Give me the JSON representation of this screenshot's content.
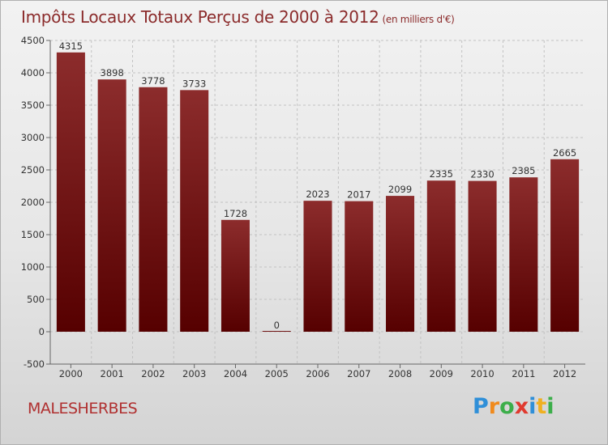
{
  "title": "Impôts Locaux Totaux Perçus de 2000 à 2012",
  "subtitle": "(en milliers d'€)",
  "city": "MALESHERBES",
  "logo": {
    "text": "Proxiti",
    "letters": [
      {
        "ch": "P",
        "color": "#2f8fd8"
      },
      {
        "ch": "r",
        "color": "#f08a1c"
      },
      {
        "ch": "o",
        "color": "#3cae4a"
      },
      {
        "ch": "x",
        "color": "#e03a2f"
      },
      {
        "ch": "i",
        "color": "#2f8fd8"
      },
      {
        "ch": "t",
        "color": "#f0b020"
      },
      {
        "ch": "i",
        "color": "#3cae4a"
      }
    ]
  },
  "chart_data": {
    "type": "bar",
    "title": "Impôts Locaux Totaux Perçus de 2000 à 2012",
    "subtitle": "(en milliers d'€)",
    "xlabel": "",
    "ylabel": "",
    "categories": [
      "2000",
      "2001",
      "2002",
      "2003",
      "2004",
      "2005",
      "2006",
      "2007",
      "2008",
      "2009",
      "2010",
      "2011",
      "2012"
    ],
    "values": [
      4315,
      3898,
      3778,
      3733,
      1728,
      0,
      2023,
      2017,
      2099,
      2335,
      2330,
      2385,
      2665
    ],
    "ylim": [
      -500,
      4500
    ],
    "yticks": [
      -500,
      0,
      500,
      1000,
      1500,
      2000,
      2500,
      3000,
      3500,
      4000,
      4500
    ],
    "grid": true,
    "bar_color": "#7a1a1a"
  }
}
